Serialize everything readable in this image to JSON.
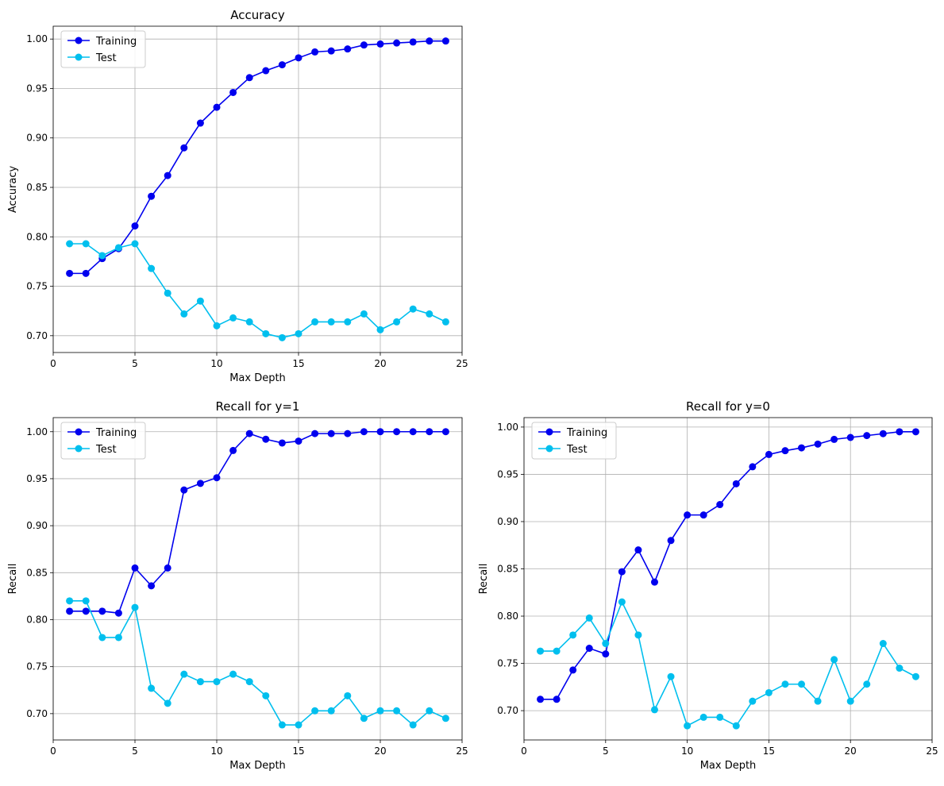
{
  "chart_data": [
    {
      "type": "line",
      "title": "Accuracy",
      "xlabel": "Max Depth",
      "ylabel": "Accuracy",
      "xlim": [
        0,
        25
      ],
      "ylim": [
        0.683,
        1.013
      ],
      "xticks": [
        0,
        5,
        10,
        15,
        20,
        25
      ],
      "yticks": [
        0.7,
        0.75,
        0.8,
        0.85,
        0.9,
        0.95,
        1.0
      ],
      "grid": true,
      "legend": "upper left",
      "x": [
        1,
        2,
        3,
        4,
        5,
        6,
        7,
        8,
        9,
        10,
        11,
        12,
        13,
        14,
        15,
        16,
        17,
        18,
        19,
        20,
        21,
        22,
        23,
        24
      ],
      "series": [
        {
          "name": "Training",
          "color": "#0000ee",
          "values": [
            0.763,
            0.763,
            0.778,
            0.788,
            0.811,
            0.841,
            0.862,
            0.89,
            0.915,
            0.931,
            0.946,
            0.961,
            0.968,
            0.974,
            0.981,
            0.987,
            0.988,
            0.99,
            0.994,
            0.995,
            0.996,
            0.997,
            0.998,
            0.998
          ]
        },
        {
          "name": "Test",
          "color": "#00bfee",
          "values": [
            0.793,
            0.793,
            0.781,
            0.789,
            0.793,
            0.768,
            0.743,
            0.722,
            0.735,
            0.71,
            0.718,
            0.714,
            0.702,
            0.698,
            0.702,
            0.714,
            0.714,
            0.714,
            0.722,
            0.706,
            0.714,
            0.727,
            0.722,
            0.714
          ]
        }
      ]
    },
    {
      "type": "line",
      "title": "Recall for y=1",
      "xlabel": "Max Depth",
      "ylabel": "Recall",
      "xlim": [
        0,
        25
      ],
      "ylim": [
        0.672,
        1.015
      ],
      "xticks": [
        0,
        5,
        10,
        15,
        20,
        25
      ],
      "yticks": [
        0.7,
        0.75,
        0.8,
        0.85,
        0.9,
        0.95,
        1.0
      ],
      "grid": true,
      "legend": "upper left",
      "x": [
        1,
        2,
        3,
        4,
        5,
        6,
        7,
        8,
        9,
        10,
        11,
        12,
        13,
        14,
        15,
        16,
        17,
        18,
        19,
        20,
        21,
        22,
        23,
        24
      ],
      "series": [
        {
          "name": "Training",
          "color": "#0000ee",
          "values": [
            0.809,
            0.809,
            0.809,
            0.807,
            0.855,
            0.836,
            0.855,
            0.938,
            0.945,
            0.951,
            0.98,
            0.998,
            0.992,
            0.988,
            0.99,
            0.998,
            0.998,
            0.998,
            1.0,
            1.0,
            1.0,
            1.0,
            1.0,
            1.0
          ]
        },
        {
          "name": "Test",
          "color": "#00bfee",
          "values": [
            0.82,
            0.82,
            0.781,
            0.781,
            0.813,
            0.727,
            0.711,
            0.742,
            0.734,
            0.734,
            0.742,
            0.734,
            0.719,
            0.688,
            0.688,
            0.703,
            0.703,
            0.719,
            0.695,
            0.703,
            0.703,
            0.688,
            0.703,
            0.695
          ]
        }
      ]
    },
    {
      "type": "line",
      "title": "Recall for y=0",
      "xlabel": "Max Depth",
      "ylabel": "Recall",
      "xlim": [
        0,
        25
      ],
      "ylim": [
        0.669,
        1.01
      ],
      "xticks": [
        0,
        5,
        10,
        15,
        20,
        25
      ],
      "yticks": [
        0.7,
        0.75,
        0.8,
        0.85,
        0.9,
        0.95,
        1.0
      ],
      "grid": true,
      "legend": "upper left",
      "x": [
        1,
        2,
        3,
        4,
        5,
        6,
        7,
        8,
        9,
        10,
        11,
        12,
        13,
        14,
        15,
        16,
        17,
        18,
        19,
        20,
        21,
        22,
        23,
        24
      ],
      "series": [
        {
          "name": "Training",
          "color": "#0000ee",
          "values": [
            0.712,
            0.712,
            0.743,
            0.766,
            0.76,
            0.847,
            0.87,
            0.836,
            0.88,
            0.907,
            0.907,
            0.918,
            0.94,
            0.958,
            0.971,
            0.975,
            0.978,
            0.982,
            0.987,
            0.989,
            0.991,
            0.993,
            0.995,
            0.995
          ]
        },
        {
          "name": "Test",
          "color": "#00bfee",
          "values": [
            0.763,
            0.763,
            0.78,
            0.798,
            0.771,
            0.815,
            0.78,
            0.701,
            0.736,
            0.684,
            0.693,
            0.693,
            0.684,
            0.71,
            0.719,
            0.728,
            0.728,
            0.71,
            0.754,
            0.71,
            0.728,
            0.771,
            0.745,
            0.736
          ]
        }
      ]
    }
  ]
}
